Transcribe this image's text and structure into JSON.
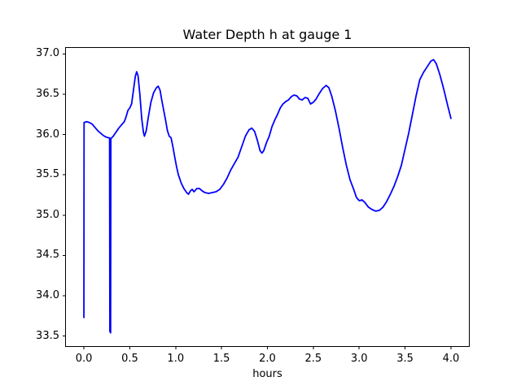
{
  "figure": {
    "background": "#ffffff",
    "text_color": "#000000",
    "spine_color": "#000000"
  },
  "chart_data": {
    "type": "line",
    "title": "Water Depth h at gauge 1",
    "xlabel": "hours",
    "ylabel": "",
    "grid": false,
    "legend_position": "none",
    "xlim": [
      -0.2,
      4.2
    ],
    "ylim": [
      33.37,
      37.08
    ],
    "xticks": [
      0.0,
      0.5,
      1.0,
      1.5,
      2.0,
      2.5,
      3.0,
      3.5,
      4.0
    ],
    "xtick_labels": [
      "0.0",
      "0.5",
      "1.0",
      "1.5",
      "2.0",
      "2.5",
      "3.0",
      "3.5",
      "4.0"
    ],
    "yticks": [
      33.5,
      34.0,
      34.5,
      35.0,
      35.5,
      36.0,
      36.5,
      37.0
    ],
    "ytick_labels": [
      "33.5",
      "34.0",
      "34.5",
      "35.0",
      "35.5",
      "36.0",
      "36.5",
      "37.0"
    ],
    "line_color": "#0000ff",
    "line_width": 1.8,
    "series": [
      {
        "name": "h at gauge 1",
        "x": [
          0.0,
          0.002,
          0.03,
          0.06,
          0.09,
          0.12,
          0.15,
          0.18,
          0.21,
          0.24,
          0.27,
          0.28,
          0.283,
          0.291,
          0.294,
          0.32,
          0.35,
          0.38,
          0.41,
          0.44,
          0.46,
          0.48,
          0.5,
          0.52,
          0.54,
          0.56,
          0.575,
          0.59,
          0.61,
          0.63,
          0.65,
          0.66,
          0.68,
          0.7,
          0.73,
          0.76,
          0.79,
          0.81,
          0.83,
          0.85,
          0.87,
          0.89,
          0.91,
          0.93,
          0.95,
          0.97,
          0.99,
          1.01,
          1.03,
          1.06,
          1.09,
          1.12,
          1.14,
          1.16,
          1.18,
          1.2,
          1.23,
          1.26,
          1.29,
          1.32,
          1.36,
          1.4,
          1.44,
          1.48,
          1.52,
          1.56,
          1.6,
          1.64,
          1.68,
          1.72,
          1.76,
          1.8,
          1.83,
          1.86,
          1.89,
          1.92,
          1.94,
          1.96,
          1.99,
          2.02,
          2.05,
          2.08,
          2.11,
          2.14,
          2.17,
          2.2,
          2.23,
          2.26,
          2.29,
          2.32,
          2.35,
          2.38,
          2.41,
          2.44,
          2.47,
          2.5,
          2.53,
          2.56,
          2.6,
          2.64,
          2.67,
          2.7,
          2.74,
          2.78,
          2.82,
          2.86,
          2.9,
          2.94,
          2.97,
          3.0,
          3.03,
          3.06,
          3.1,
          3.14,
          3.18,
          3.22,
          3.26,
          3.3,
          3.34,
          3.38,
          3.42,
          3.46,
          3.5,
          3.54,
          3.58,
          3.62,
          3.66,
          3.7,
          3.74,
          3.78,
          3.81,
          3.84,
          3.88,
          3.92,
          3.96,
          4.0
        ],
        "y": [
          33.73,
          36.15,
          36.16,
          36.15,
          36.13,
          36.09,
          36.05,
          36.02,
          35.99,
          35.97,
          35.96,
          35.96,
          33.56,
          33.54,
          35.95,
          35.98,
          36.03,
          36.08,
          36.12,
          36.16,
          36.22,
          36.3,
          36.33,
          36.38,
          36.55,
          36.72,
          36.78,
          36.73,
          36.5,
          36.2,
          36.02,
          35.98,
          36.05,
          36.2,
          36.4,
          36.52,
          36.58,
          36.6,
          36.55,
          36.42,
          36.3,
          36.18,
          36.05,
          35.98,
          35.96,
          35.85,
          35.72,
          35.6,
          35.5,
          35.4,
          35.33,
          35.28,
          35.26,
          35.3,
          35.32,
          35.29,
          35.33,
          35.33,
          35.3,
          35.28,
          35.27,
          35.28,
          35.29,
          35.32,
          35.38,
          35.46,
          35.56,
          35.64,
          35.72,
          35.85,
          35.98,
          36.06,
          36.08,
          36.04,
          35.93,
          35.8,
          35.77,
          35.8,
          35.9,
          35.98,
          36.1,
          36.18,
          36.25,
          36.33,
          36.38,
          36.41,
          36.43,
          36.47,
          36.49,
          36.48,
          36.44,
          36.43,
          36.46,
          36.45,
          36.38,
          36.4,
          36.44,
          36.5,
          36.57,
          36.61,
          36.58,
          36.48,
          36.3,
          36.08,
          35.84,
          35.62,
          35.44,
          35.32,
          35.22,
          35.18,
          35.19,
          35.16,
          35.1,
          35.07,
          35.05,
          35.06,
          35.1,
          35.17,
          35.26,
          35.36,
          35.48,
          35.62,
          35.82,
          36.02,
          36.25,
          36.48,
          36.68,
          36.77,
          36.84,
          36.91,
          36.93,
          36.88,
          36.74,
          36.57,
          36.38,
          36.2
        ]
      }
    ]
  }
}
